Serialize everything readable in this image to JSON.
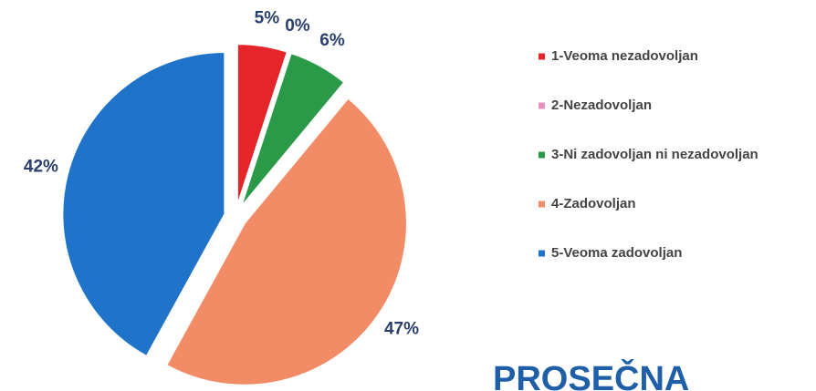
{
  "chart_data": {
    "type": "pie",
    "categories": [
      "1-Veoma nezadovoljan",
      "2-Nezadovoljan",
      "3-Ni zadovoljan ni nezadovoljan",
      "4-Zadovoljan",
      "5-Veoma zadovoljan"
    ],
    "values": [
      5,
      0,
      6,
      47,
      42
    ],
    "value_labels": [
      "5%",
      "0%",
      "6%",
      "47%",
      "42%"
    ],
    "colors": [
      "#e5252a",
      "#e88fc4",
      "#2a9a48",
      "#f28c66",
      "#1f74c9"
    ],
    "legend": "right",
    "annotation": "PROSEČNA"
  }
}
